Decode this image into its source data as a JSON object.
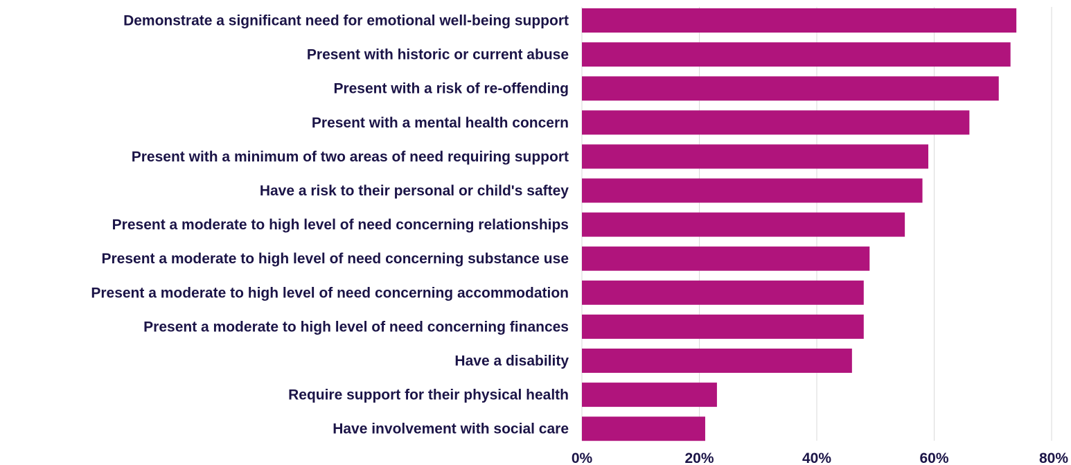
{
  "chart_data": {
    "type": "bar",
    "orientation": "horizontal",
    "categories": [
      "Demonstrate a significant need for emotional well-being support",
      "Present with historic or current abuse",
      "Present with a risk of re-offending",
      "Present with a mental health concern",
      "Present with a minimum of two areas of need requiring support",
      "Have a risk to their personal or child's saftey",
      "Present a moderate to high level of need concerning relationships",
      "Present a moderate to high level of need concerning substance use",
      "Present a moderate to high level of need concerning accommodation",
      "Present a moderate to high level of need concerning finances",
      "Have a disability",
      "Require support for their physical health",
      "Have involvement with social care"
    ],
    "values": [
      74,
      73,
      71,
      66,
      59,
      58,
      55,
      49,
      48,
      48,
      46,
      23,
      21
    ],
    "xlim": [
      0,
      80
    ],
    "xticks": [
      0,
      20,
      40,
      60,
      80
    ],
    "tick_suffix": "%",
    "bar_color": "#b0147c",
    "grid": true,
    "title": "",
    "xlabel": "",
    "ylabel": ""
  }
}
